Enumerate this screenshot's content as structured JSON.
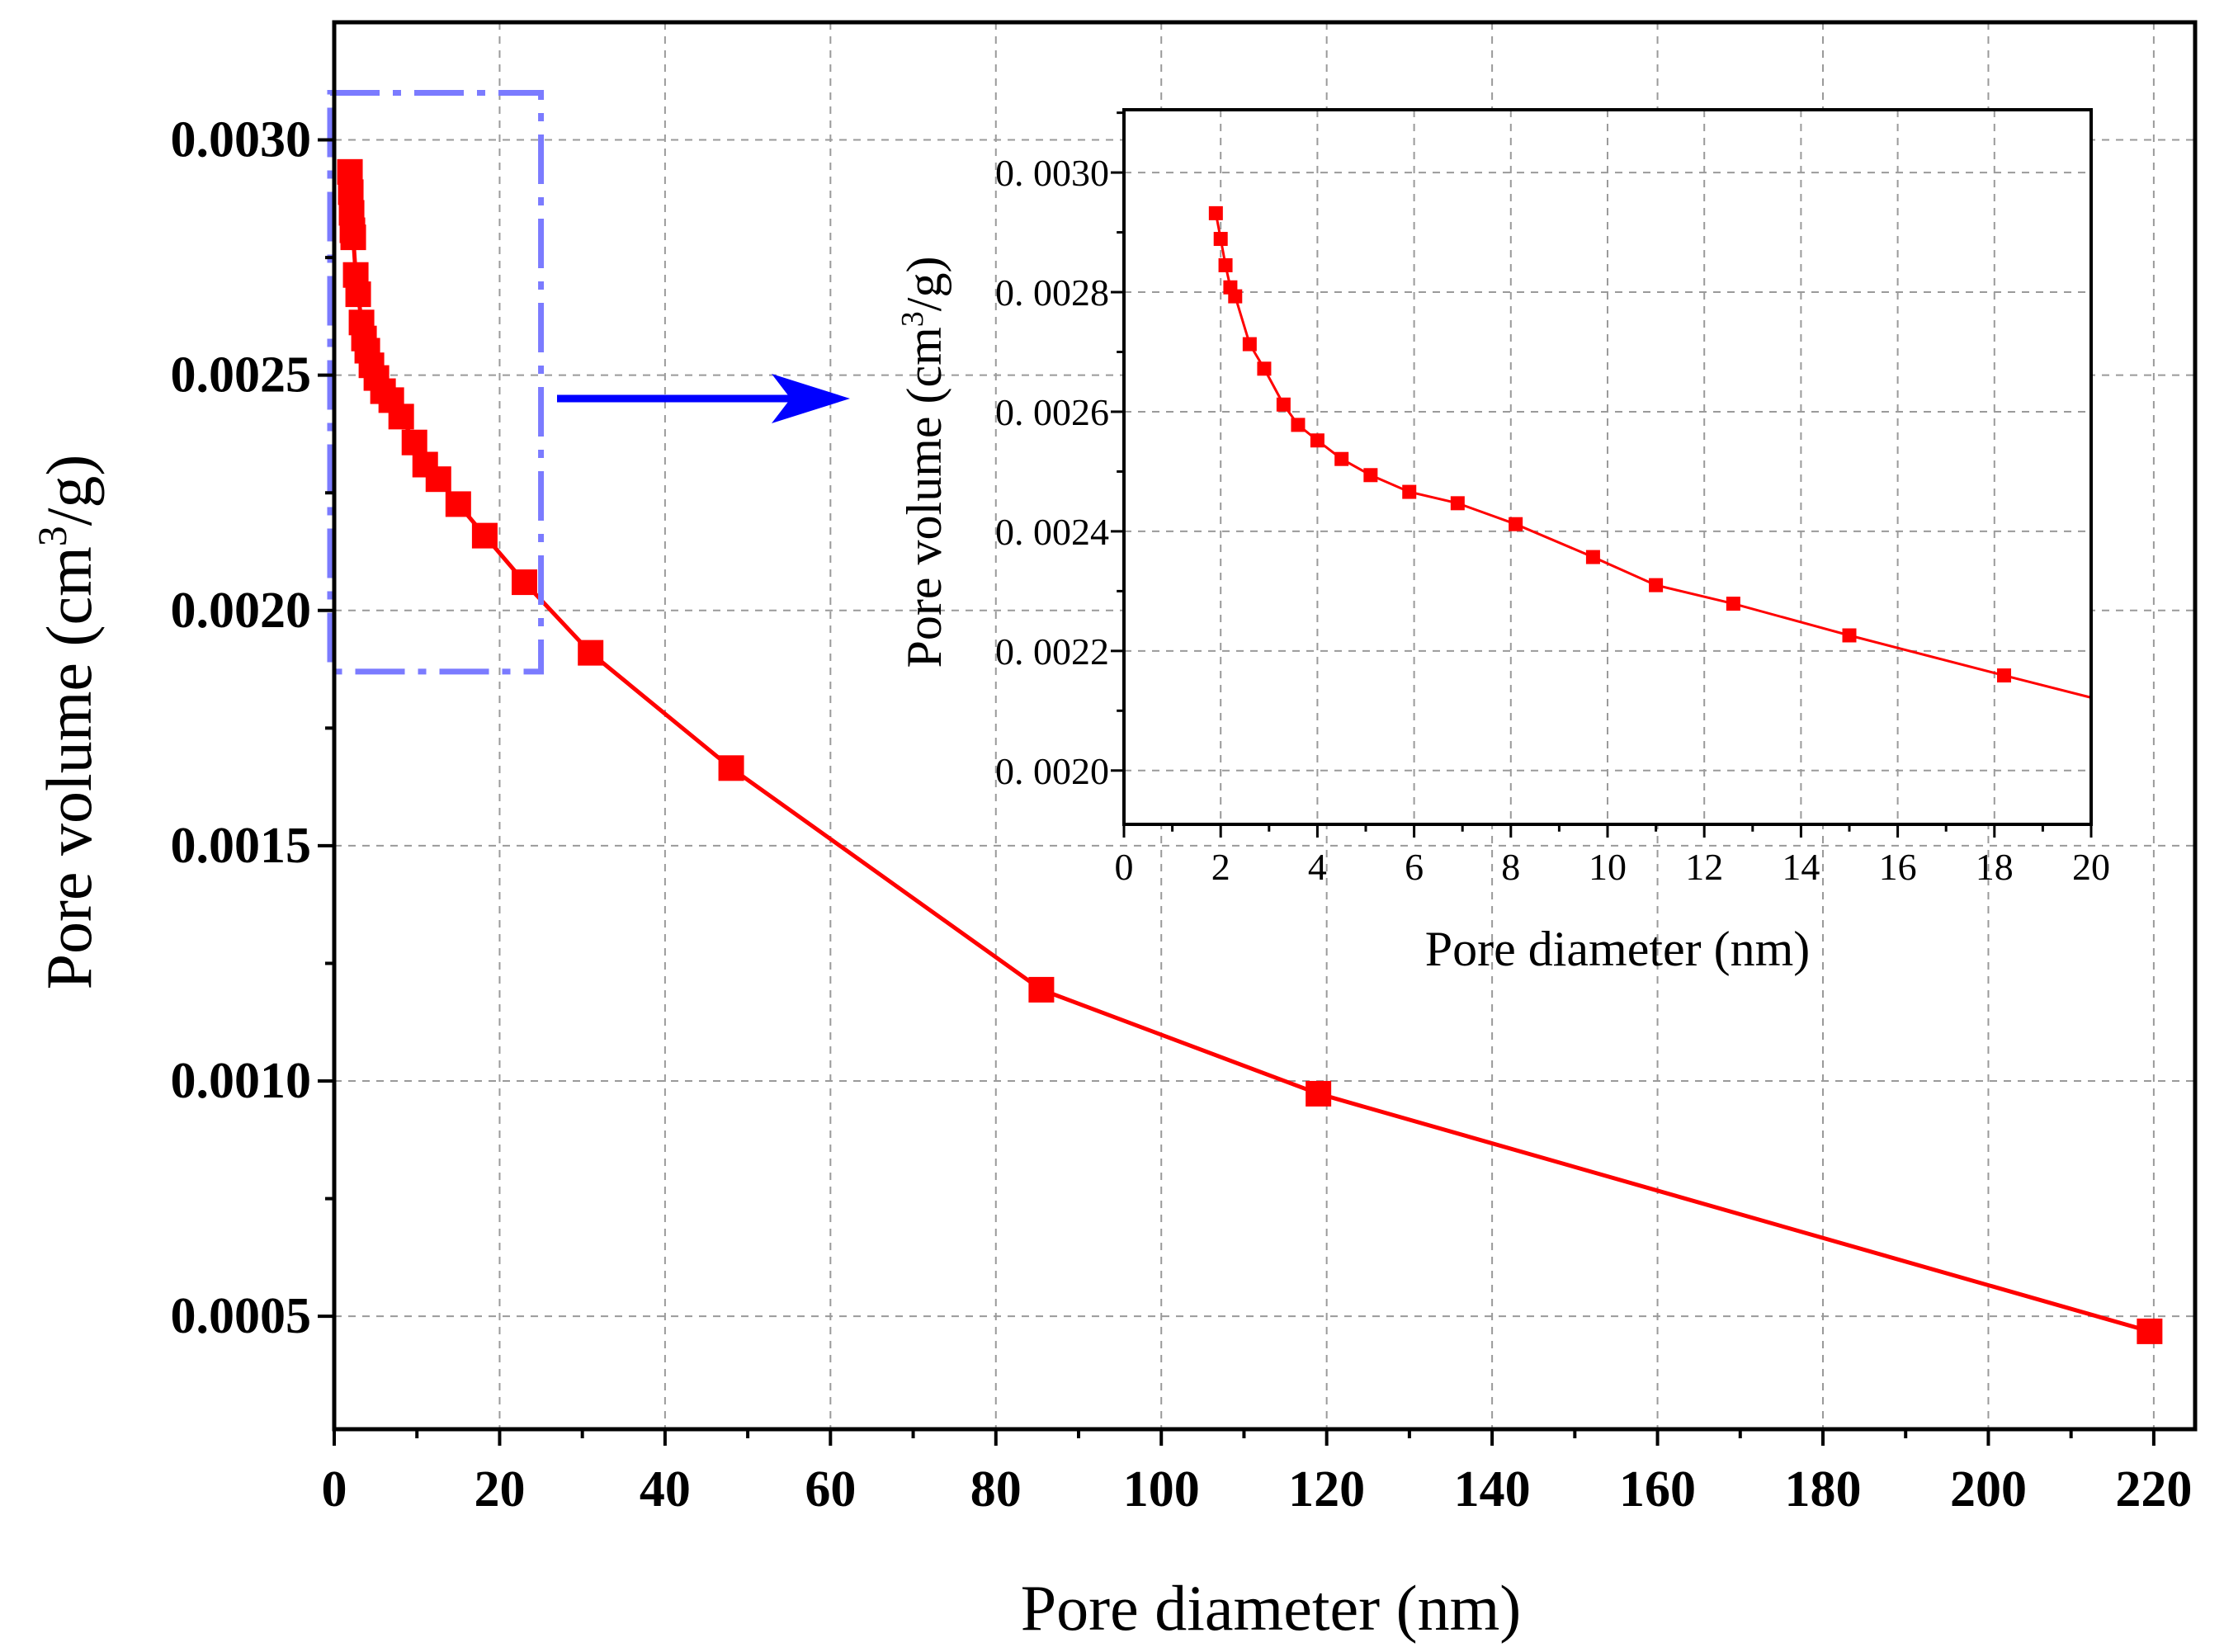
{
  "chart_data": [
    {
      "type": "line",
      "name": "main",
      "xlabel": "Pore diameter (nm)",
      "ylabel_prefix": "Pore volume (cm",
      "ylabel_sup": "3",
      "ylabel_suffix": "/g)",
      "xlim": [
        0,
        225
      ],
      "ylim": [
        0.00026,
        0.00325
      ],
      "xticks": [
        0,
        20,
        40,
        60,
        80,
        100,
        120,
        140,
        160,
        180,
        200,
        220
      ],
      "xtick_labels": [
        "0",
        "20",
        "40",
        "60",
        "80",
        "100",
        "120",
        "140",
        "160",
        "180",
        "200",
        "220"
      ],
      "yticks": [
        0.0005,
        0.001,
        0.0015,
        0.002,
        0.0025,
        0.003
      ],
      "ytick_labels": [
        "0.0005",
        "0.0010",
        "0.0015",
        "0.0020",
        "0.0025",
        "0.0030"
      ],
      "grid": true,
      "series": [
        {
          "name": "Pore volume",
          "color": "#ff0000",
          "marker": "square",
          "x": [
            1.9,
            2.0,
            2.1,
            2.2,
            2.3,
            2.6,
            2.9,
            3.3,
            3.6,
            4.0,
            4.5,
            5.1,
            5.9,
            6.9,
            8.1,
            9.7,
            11.0,
            12.6,
            15.0,
            18.2,
            23.0,
            31.0,
            48.0,
            85.5,
            119.0,
            219.5
          ],
          "y": [
            0.002932,
            0.002889,
            0.002845,
            0.002808,
            0.002793,
            0.002713,
            0.002672,
            0.002612,
            0.002578,
            0.002552,
            0.002521,
            0.002494,
            0.002466,
            0.002447,
            0.002412,
            0.002357,
            0.00231,
            0.002279,
            0.002226,
            0.002159,
            0.00206,
            0.00191,
            0.001665,
            0.001194,
            0.000973,
            0.000468
          ]
        }
      ],
      "annotations": {
        "zoom_box_color": "#7b7bff",
        "zoom_box_x": [
          -0.5,
          25
        ],
        "zoom_box_y": [
          0.00187,
          0.0031
        ],
        "arrow_color": "#0000ff"
      }
    },
    {
      "type": "line",
      "name": "inset",
      "xlabel": "Pore diameter (nm)",
      "ylabel_prefix": "Pore volume (cm",
      "ylabel_sup": "3",
      "ylabel_suffix": "/g)",
      "xlim": [
        0,
        20
      ],
      "ylim": [
        0.00191,
        0.003105
      ],
      "xticks": [
        0,
        2,
        4,
        6,
        8,
        10,
        12,
        14,
        16,
        18,
        20
      ],
      "xtick_labels": [
        "0",
        "2",
        "4",
        "6",
        "8",
        "10",
        "12",
        "14",
        "16",
        "18",
        "20"
      ],
      "yticks": [
        0.002,
        0.0022,
        0.0024,
        0.0026,
        0.0028,
        0.003
      ],
      "ytick_labels": [
        "0. 0020",
        "0. 0022",
        "0. 0024",
        "0. 0026",
        "0. 0028",
        "0. 0030"
      ],
      "grid": true,
      "series": [
        {
          "name": "Pore volume",
          "color": "#ff0000",
          "marker": "square",
          "x": [
            1.9,
            2.0,
            2.1,
            2.2,
            2.3,
            2.6,
            2.9,
            3.3,
            3.6,
            4.0,
            4.5,
            5.1,
            5.9,
            6.9,
            8.1,
            9.7,
            11.0,
            12.6,
            15.0,
            18.2,
            20.0
          ],
          "y": [
            0.002932,
            0.002889,
            0.002845,
            0.002808,
            0.002793,
            0.002713,
            0.002672,
            0.002612,
            0.002578,
            0.002552,
            0.002521,
            0.002494,
            0.002466,
            0.002447,
            0.002412,
            0.002357,
            0.00231,
            0.002279,
            0.002226,
            0.002159,
            0.002122
          ],
          "marker_count": 20
        }
      ]
    }
  ]
}
